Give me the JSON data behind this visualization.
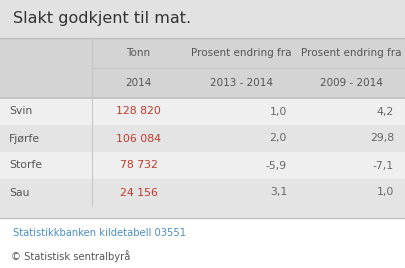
{
  "title": "Slakt godkjent til mat.",
  "col_headers_row1": [
    "",
    "Tonn",
    "Prosent endring fra",
    "Prosent endring fra"
  ],
  "col_headers_row2": [
    "",
    "2014",
    "2013 - 2014",
    "2009 - 2014"
  ],
  "rows": [
    [
      "Svin",
      "128 820",
      "1,0",
      "4,2"
    ],
    [
      "Fjørfe",
      "106 084",
      "2,0",
      "29,8"
    ],
    [
      "Storfe",
      "78 732",
      "-5,9",
      "-7,1"
    ],
    [
      "Sau",
      "24 156",
      "3,1",
      "1,0"
    ]
  ],
  "footer_link": "Statistikkbanken kildetabell 03551",
  "footer_copy": "© Statistisk sentralbyrå",
  "bg_title": "#e2e2e2",
  "bg_header": "#d4d4d4",
  "bg_row_light": "#efefef",
  "bg_row_dark": "#e4e4e4",
  "bg_footer": "#ffffff",
  "bg_empty": "#e4e4e4",
  "text_label": "#555555",
  "text_value_red": "#c0392b",
  "text_pct": "#666666",
  "text_link": "#4a90c4",
  "text_copy": "#555555",
  "border_color": "#c0c0c0",
  "sep_color": "#c8c8c8",
  "title_fontsize": 11.5,
  "header_fontsize": 7.5,
  "data_fontsize": 7.8,
  "footer_fontsize": 7.2
}
